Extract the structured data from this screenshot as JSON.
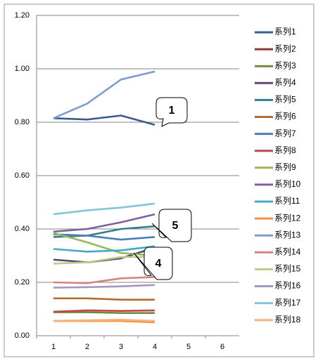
{
  "chart_data": {
    "type": "line",
    "categories": [
      "1",
      "2",
      "3",
      "4",
      "5",
      "6"
    ],
    "ylim": [
      0,
      1.2
    ],
    "yticks": [
      {
        "value": 0,
        "label": "0.00"
      },
      {
        "value": 0.2,
        "label": "0.20"
      },
      {
        "value": 0.4,
        "label": "0.40"
      },
      {
        "value": 0.6,
        "label": "0.60"
      },
      {
        "value": 0.8,
        "label": "0.80"
      },
      {
        "value": 1,
        "label": "1.00"
      },
      {
        "value": 1.2,
        "label": "1.20"
      }
    ],
    "grid": true,
    "legend": "right",
    "annotations": [
      "1",
      "5",
      "4"
    ],
    "series": [
      {
        "name": "系列1",
        "color": "#385d8a",
        "values": [
          0.815,
          0.81,
          0.825,
          0.79,
          null,
          null
        ]
      },
      {
        "name": "系列2",
        "color": "#8c3836",
        "values": [
          0.055,
          0.057,
          0.056,
          0.055,
          null,
          null
        ]
      },
      {
        "name": "系列3",
        "color": "#71893f",
        "values": [
          0.088,
          0.088,
          0.085,
          0.085,
          null,
          null
        ]
      },
      {
        "name": "系列4",
        "color": "#5c4776",
        "values": [
          0.285,
          0.275,
          0.29,
          0.33,
          null,
          null
        ]
      },
      {
        "name": "系列5",
        "color": "#357d91",
        "values": [
          0.37,
          0.375,
          0.4,
          0.41,
          null,
          null
        ]
      },
      {
        "name": "系列6",
        "color": "#b66d31",
        "values": [
          0.14,
          0.14,
          0.135,
          0.135,
          null,
          null
        ]
      },
      {
        "name": "系列7",
        "color": "#4a7ebb",
        "values": [
          0.38,
          0.375,
          0.36,
          0.37,
          null,
          null
        ]
      },
      {
        "name": "系列8",
        "color": "#be4b48",
        "values": [
          0.09,
          0.095,
          0.093,
          0.095,
          null,
          null
        ]
      },
      {
        "name": "系列9",
        "color": "#98b954",
        "values": [
          0.385,
          0.35,
          0.31,
          0.3,
          null,
          null
        ]
      },
      {
        "name": "系列10",
        "color": "#7d60a0",
        "values": [
          0.39,
          0.4,
          0.425,
          0.455,
          null,
          null
        ]
      },
      {
        "name": "系列11",
        "color": "#46aac5",
        "values": [
          0.325,
          0.315,
          0.32,
          0.335,
          null,
          null
        ]
      },
      {
        "name": "系列12",
        "color": "#f69240",
        "values": [
          0.055,
          0.055,
          0.055,
          0.05,
          null,
          null
        ]
      },
      {
        "name": "系列13",
        "color": "#7e9ed0",
        "values": [
          0.815,
          0.87,
          0.96,
          0.99,
          null,
          null
        ]
      },
      {
        "name": "系列14",
        "color": "#d98180",
        "values": [
          0.2,
          0.197,
          0.215,
          0.22,
          null,
          null
        ]
      },
      {
        "name": "系列15",
        "color": "#b8ce8a",
        "values": [
          0.27,
          0.275,
          0.295,
          0.295,
          null,
          null
        ]
      },
      {
        "name": "系列16",
        "color": "#a896c0",
        "values": [
          0.18,
          0.182,
          0.185,
          0.19,
          null,
          null
        ]
      },
      {
        "name": "系列17",
        "color": "#7fc6d9",
        "values": [
          0.455,
          0.47,
          0.48,
          0.495,
          null,
          null
        ]
      },
      {
        "name": "系列18",
        "color": "#f8b27c",
        "values": [
          0.055,
          0.058,
          0.06,
          0.055,
          null,
          null
        ]
      }
    ]
  }
}
